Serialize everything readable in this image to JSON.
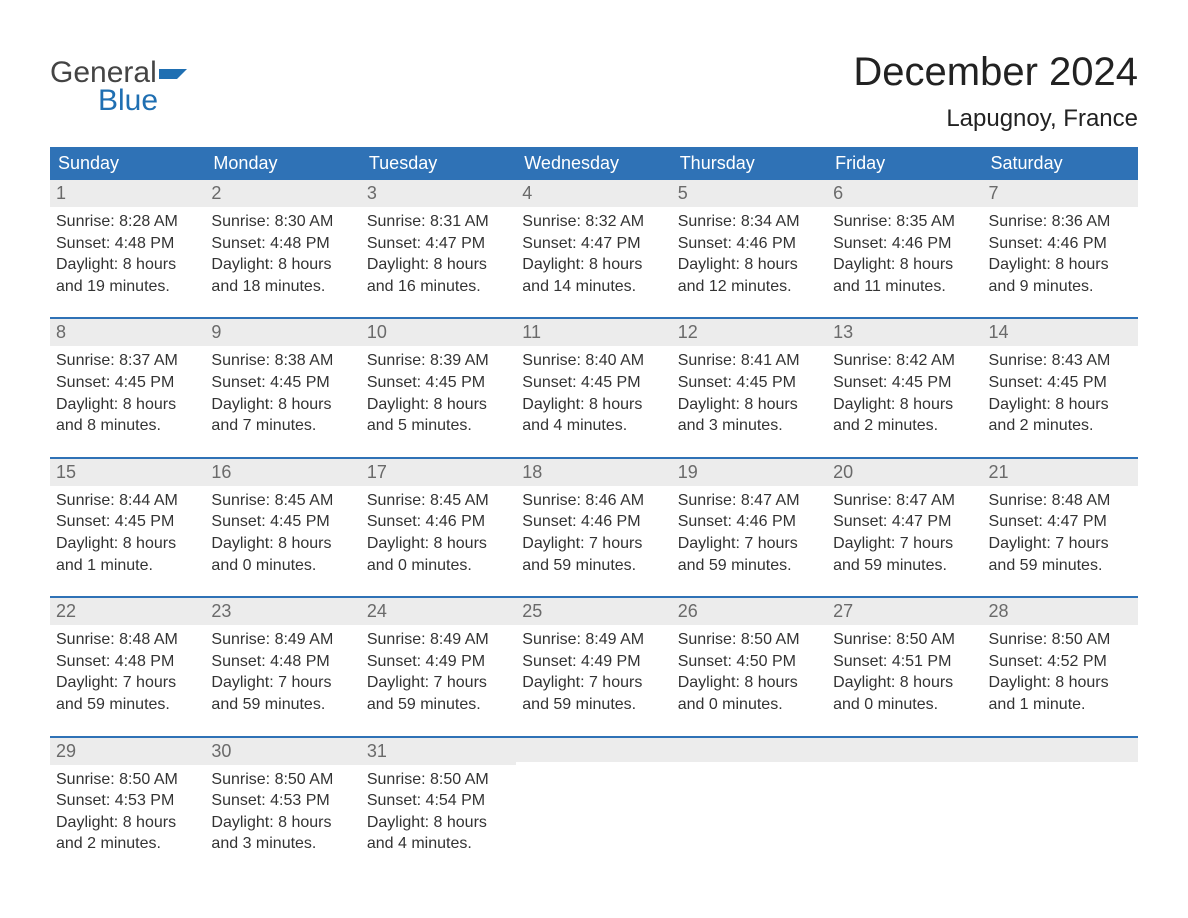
{
  "brand": {
    "part1": "General",
    "part2": "Blue",
    "flag_color": "#1f6fb2"
  },
  "title": "December 2024",
  "location": "Lapugnoy, France",
  "colors": {
    "header_bg": "#2f72b6",
    "header_text": "#ffffff",
    "daynum_bg": "#ececec",
    "daynum_text": "#6a6a6a",
    "week_border": "#2f72b6",
    "body_text": "#333333",
    "page_bg": "#ffffff"
  },
  "weekdays": [
    "Sunday",
    "Monday",
    "Tuesday",
    "Wednesday",
    "Thursday",
    "Friday",
    "Saturday"
  ],
  "weeks": [
    [
      {
        "n": "1",
        "l1": "Sunrise: 8:28 AM",
        "l2": "Sunset: 4:48 PM",
        "l3": "Daylight: 8 hours",
        "l4": "and 19 minutes."
      },
      {
        "n": "2",
        "l1": "Sunrise: 8:30 AM",
        "l2": "Sunset: 4:48 PM",
        "l3": "Daylight: 8 hours",
        "l4": "and 18 minutes."
      },
      {
        "n": "3",
        "l1": "Sunrise: 8:31 AM",
        "l2": "Sunset: 4:47 PM",
        "l3": "Daylight: 8 hours",
        "l4": "and 16 minutes."
      },
      {
        "n": "4",
        "l1": "Sunrise: 8:32 AM",
        "l2": "Sunset: 4:47 PM",
        "l3": "Daylight: 8 hours",
        "l4": "and 14 minutes."
      },
      {
        "n": "5",
        "l1": "Sunrise: 8:34 AM",
        "l2": "Sunset: 4:46 PM",
        "l3": "Daylight: 8 hours",
        "l4": "and 12 minutes."
      },
      {
        "n": "6",
        "l1": "Sunrise: 8:35 AM",
        "l2": "Sunset: 4:46 PM",
        "l3": "Daylight: 8 hours",
        "l4": "and 11 minutes."
      },
      {
        "n": "7",
        "l1": "Sunrise: 8:36 AM",
        "l2": "Sunset: 4:46 PM",
        "l3": "Daylight: 8 hours",
        "l4": "and 9 minutes."
      }
    ],
    [
      {
        "n": "8",
        "l1": "Sunrise: 8:37 AM",
        "l2": "Sunset: 4:45 PM",
        "l3": "Daylight: 8 hours",
        "l4": "and 8 minutes."
      },
      {
        "n": "9",
        "l1": "Sunrise: 8:38 AM",
        "l2": "Sunset: 4:45 PM",
        "l3": "Daylight: 8 hours",
        "l4": "and 7 minutes."
      },
      {
        "n": "10",
        "l1": "Sunrise: 8:39 AM",
        "l2": "Sunset: 4:45 PM",
        "l3": "Daylight: 8 hours",
        "l4": "and 5 minutes."
      },
      {
        "n": "11",
        "l1": "Sunrise: 8:40 AM",
        "l2": "Sunset: 4:45 PM",
        "l3": "Daylight: 8 hours",
        "l4": "and 4 minutes."
      },
      {
        "n": "12",
        "l1": "Sunrise: 8:41 AM",
        "l2": "Sunset: 4:45 PM",
        "l3": "Daylight: 8 hours",
        "l4": "and 3 minutes."
      },
      {
        "n": "13",
        "l1": "Sunrise: 8:42 AM",
        "l2": "Sunset: 4:45 PM",
        "l3": "Daylight: 8 hours",
        "l4": "and 2 minutes."
      },
      {
        "n": "14",
        "l1": "Sunrise: 8:43 AM",
        "l2": "Sunset: 4:45 PM",
        "l3": "Daylight: 8 hours",
        "l4": "and 2 minutes."
      }
    ],
    [
      {
        "n": "15",
        "l1": "Sunrise: 8:44 AM",
        "l2": "Sunset: 4:45 PM",
        "l3": "Daylight: 8 hours",
        "l4": "and 1 minute."
      },
      {
        "n": "16",
        "l1": "Sunrise: 8:45 AM",
        "l2": "Sunset: 4:45 PM",
        "l3": "Daylight: 8 hours",
        "l4": "and 0 minutes."
      },
      {
        "n": "17",
        "l1": "Sunrise: 8:45 AM",
        "l2": "Sunset: 4:46 PM",
        "l3": "Daylight: 8 hours",
        "l4": "and 0 minutes."
      },
      {
        "n": "18",
        "l1": "Sunrise: 8:46 AM",
        "l2": "Sunset: 4:46 PM",
        "l3": "Daylight: 7 hours",
        "l4": "and 59 minutes."
      },
      {
        "n": "19",
        "l1": "Sunrise: 8:47 AM",
        "l2": "Sunset: 4:46 PM",
        "l3": "Daylight: 7 hours",
        "l4": "and 59 minutes."
      },
      {
        "n": "20",
        "l1": "Sunrise: 8:47 AM",
        "l2": "Sunset: 4:47 PM",
        "l3": "Daylight: 7 hours",
        "l4": "and 59 minutes."
      },
      {
        "n": "21",
        "l1": "Sunrise: 8:48 AM",
        "l2": "Sunset: 4:47 PM",
        "l3": "Daylight: 7 hours",
        "l4": "and 59 minutes."
      }
    ],
    [
      {
        "n": "22",
        "l1": "Sunrise: 8:48 AM",
        "l2": "Sunset: 4:48 PM",
        "l3": "Daylight: 7 hours",
        "l4": "and 59 minutes."
      },
      {
        "n": "23",
        "l1": "Sunrise: 8:49 AM",
        "l2": "Sunset: 4:48 PM",
        "l3": "Daylight: 7 hours",
        "l4": "and 59 minutes."
      },
      {
        "n": "24",
        "l1": "Sunrise: 8:49 AM",
        "l2": "Sunset: 4:49 PM",
        "l3": "Daylight: 7 hours",
        "l4": "and 59 minutes."
      },
      {
        "n": "25",
        "l1": "Sunrise: 8:49 AM",
        "l2": "Sunset: 4:49 PM",
        "l3": "Daylight: 7 hours",
        "l4": "and 59 minutes."
      },
      {
        "n": "26",
        "l1": "Sunrise: 8:50 AM",
        "l2": "Sunset: 4:50 PM",
        "l3": "Daylight: 8 hours",
        "l4": "and 0 minutes."
      },
      {
        "n": "27",
        "l1": "Sunrise: 8:50 AM",
        "l2": "Sunset: 4:51 PM",
        "l3": "Daylight: 8 hours",
        "l4": "and 0 minutes."
      },
      {
        "n": "28",
        "l1": "Sunrise: 8:50 AM",
        "l2": "Sunset: 4:52 PM",
        "l3": "Daylight: 8 hours",
        "l4": "and 1 minute."
      }
    ],
    [
      {
        "n": "29",
        "l1": "Sunrise: 8:50 AM",
        "l2": "Sunset: 4:53 PM",
        "l3": "Daylight: 8 hours",
        "l4": "and 2 minutes."
      },
      {
        "n": "30",
        "l1": "Sunrise: 8:50 AM",
        "l2": "Sunset: 4:53 PM",
        "l3": "Daylight: 8 hours",
        "l4": "and 3 minutes."
      },
      {
        "n": "31",
        "l1": "Sunrise: 8:50 AM",
        "l2": "Sunset: 4:54 PM",
        "l3": "Daylight: 8 hours",
        "l4": "and 4 minutes."
      },
      null,
      null,
      null,
      null
    ]
  ]
}
